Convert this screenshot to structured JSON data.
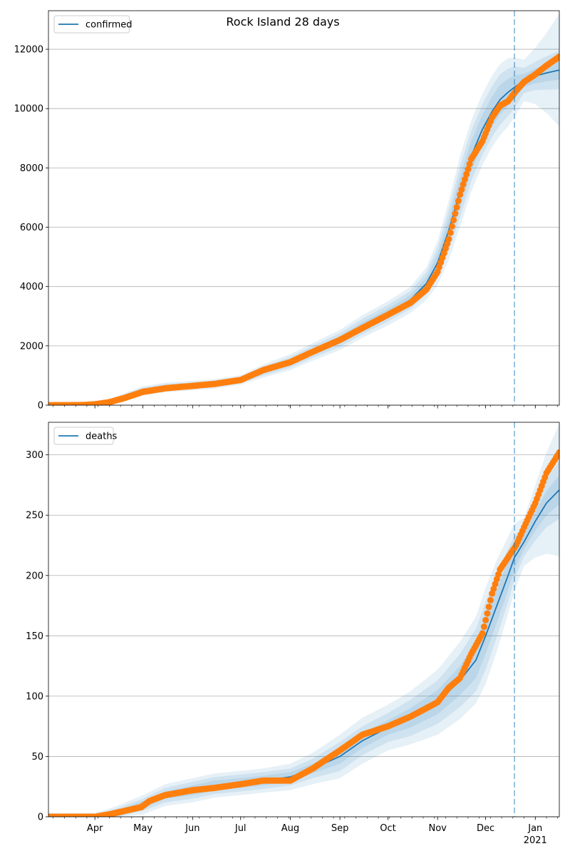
{
  "figure": {
    "title": "Rock Island 28 days",
    "forecast_start_date": "2020-12-19"
  },
  "colors": {
    "model": "#1f77b4",
    "observed": "#ff7f0e",
    "band": "#1f77b4",
    "grid": "#b0b0b0"
  },
  "chart_data": [
    {
      "type": "line",
      "legend": "confirmed",
      "legend_position": "top-left",
      "grid": "horizontal",
      "xlim": [
        "2020-03-03",
        "2021-01-16"
      ],
      "ylim": [
        0,
        13300
      ],
      "yticks": [
        0,
        2000,
        4000,
        6000,
        8000,
        10000,
        12000
      ],
      "xtick_labels": [
        {
          "date": "2020-04-01",
          "label": "Apr"
        },
        {
          "date": "2020-05-01",
          "label": "May"
        },
        {
          "date": "2020-06-01",
          "label": "Jun"
        },
        {
          "date": "2020-07-01",
          "label": "Jul"
        },
        {
          "date": "2020-08-01",
          "label": "Aug"
        },
        {
          "date": "2020-09-01",
          "label": "Sep"
        },
        {
          "date": "2020-10-01",
          "label": "Oct"
        },
        {
          "date": "2020-11-01",
          "label": "Nov"
        },
        {
          "date": "2020-12-01",
          "label": "Dec"
        },
        {
          "date": "2021-01-01",
          "label": "Jan\n2021"
        }
      ],
      "model": {
        "x": [
          "2020-03-03",
          "2020-03-25",
          "2020-04-01",
          "2020-04-15",
          "2020-05-01",
          "2020-05-15",
          "2020-06-01",
          "2020-06-15",
          "2020-07-01",
          "2020-07-15",
          "2020-08-01",
          "2020-08-15",
          "2020-09-01",
          "2020-09-15",
          "2020-10-01",
          "2020-10-15",
          "2020-10-25",
          "2020-11-01",
          "2020-11-08",
          "2020-11-15",
          "2020-11-22",
          "2020-11-29",
          "2020-12-05",
          "2020-12-10",
          "2020-12-15",
          "2020-12-19",
          "2020-12-25",
          "2021-01-01",
          "2021-01-08",
          "2021-01-16"
        ],
        "y": [
          5,
          20,
          30,
          220,
          480,
          600,
          660,
          720,
          850,
          1150,
          1450,
          1800,
          2200,
          2650,
          3100,
          3550,
          4100,
          4800,
          5900,
          7200,
          8400,
          9300,
          9900,
          10300,
          10550,
          10720,
          10950,
          11100,
          11200,
          11300
        ]
      },
      "band_half_widths": [
        [
          0,
          3,
          5,
          30,
          60,
          60,
          60,
          60,
          60,
          80,
          100,
          110,
          120,
          140,
          150,
          160,
          200,
          280,
          400,
          500,
          500,
          500,
          500,
          500,
          450,
          400,
          220,
          250,
          280,
          320
        ],
        [
          0,
          6,
          10,
          60,
          110,
          110,
          110,
          110,
          110,
          150,
          180,
          200,
          230,
          260,
          280,
          300,
          380,
          520,
          700,
          850,
          850,
          850,
          850,
          850,
          800,
          700,
          420,
          480,
          560,
          650
        ],
        [
          0,
          10,
          15,
          90,
          160,
          160,
          160,
          160,
          160,
          220,
          270,
          300,
          340,
          380,
          410,
          440,
          550,
          750,
          1000,
          1200,
          1200,
          1200,
          1200,
          1200,
          1150,
          1000,
          700,
          950,
          1350,
          1900
        ]
      ],
      "observed": {
        "x": [
          "2020-03-03",
          "2020-03-15",
          "2020-03-25",
          "2020-04-01",
          "2020-04-10",
          "2020-04-20",
          "2020-05-01",
          "2020-05-15",
          "2020-06-01",
          "2020-06-15",
          "2020-07-01",
          "2020-07-15",
          "2020-08-01",
          "2020-08-15",
          "2020-09-01",
          "2020-09-15",
          "2020-10-01",
          "2020-10-15",
          "2020-10-25",
          "2020-11-01",
          "2020-11-08",
          "2020-11-15",
          "2020-11-22",
          "2020-11-29",
          "2020-12-05",
          "2020-12-10",
          "2020-12-15",
          "2020-12-20",
          "2020-12-25",
          "2021-01-01",
          "2021-01-08",
          "2021-01-16"
        ],
        "y": [
          0,
          0,
          5,
          30,
          100,
          250,
          450,
          570,
          650,
          720,
          850,
          1180,
          1450,
          1800,
          2200,
          2600,
          3050,
          3450,
          3900,
          4500,
          5600,
          7100,
          8300,
          8900,
          9700,
          10100,
          10250,
          10600,
          10900,
          11150,
          11450,
          11750
        ]
      }
    },
    {
      "type": "line",
      "legend": "deaths",
      "legend_position": "top-left",
      "grid": "horizontal",
      "xlim": [
        "2020-03-03",
        "2021-01-16"
      ],
      "ylim": [
        0,
        327
      ],
      "yticks": [
        0,
        50,
        100,
        150,
        200,
        250,
        300
      ],
      "xtick_labels": [
        {
          "date": "2020-04-01",
          "label": "Apr"
        },
        {
          "date": "2020-05-01",
          "label": "May"
        },
        {
          "date": "2020-06-01",
          "label": "Jun"
        },
        {
          "date": "2020-07-01",
          "label": "Jul"
        },
        {
          "date": "2020-08-01",
          "label": "Aug"
        },
        {
          "date": "2020-09-01",
          "label": "Sep"
        },
        {
          "date": "2020-10-01",
          "label": "Oct"
        },
        {
          "date": "2020-11-01",
          "label": "Nov"
        },
        {
          "date": "2020-12-01",
          "label": "Dec"
        },
        {
          "date": "2021-01-01",
          "label": "Jan\n2021"
        }
      ],
      "model": {
        "x": [
          "2020-03-03",
          "2020-04-01",
          "2020-04-15",
          "2020-05-01",
          "2020-05-15",
          "2020-06-01",
          "2020-06-15",
          "2020-07-01",
          "2020-07-15",
          "2020-08-01",
          "2020-08-15",
          "2020-09-01",
          "2020-09-15",
          "2020-10-01",
          "2020-10-15",
          "2020-11-01",
          "2020-11-15",
          "2020-11-25",
          "2020-12-01",
          "2020-12-08",
          "2020-12-15",
          "2020-12-19",
          "2020-12-25",
          "2021-01-01",
          "2021-01-08",
          "2021-01-16"
        ],
        "y": [
          0,
          0,
          3,
          10,
          18,
          22,
          26,
          28,
          30,
          33,
          40,
          50,
          63,
          74,
          82,
          95,
          113,
          130,
          150,
          175,
          200,
          215,
          228,
          245,
          260,
          271
        ]
      },
      "band_half_widths": [
        [
          1,
          1,
          2,
          3,
          3,
          4,
          4,
          4,
          4,
          4,
          4,
          6,
          6,
          6,
          8,
          10,
          12,
          15,
          15,
          14,
          12,
          10,
          6,
          8,
          10,
          12
        ],
        [
          2,
          2,
          4,
          5,
          6,
          7,
          7,
          7,
          7,
          7,
          8,
          12,
          12,
          12,
          15,
          18,
          22,
          26,
          28,
          26,
          22,
          18,
          12,
          16,
          20,
          24
        ],
        [
          3,
          3,
          6,
          8,
          9,
          10,
          10,
          10,
          10,
          11,
          13,
          18,
          19,
          19,
          22,
          27,
          32,
          36,
          40,
          38,
          32,
          28,
          20,
          30,
          42,
          55
        ]
      ],
      "observed": {
        "x": [
          "2020-03-03",
          "2020-03-25",
          "2020-04-01",
          "2020-04-10",
          "2020-04-20",
          "2020-04-30",
          "2020-05-05",
          "2020-05-15",
          "2020-06-01",
          "2020-06-15",
          "2020-07-01",
          "2020-07-15",
          "2020-08-01",
          "2020-08-15",
          "2020-09-01",
          "2020-09-15",
          "2020-10-01",
          "2020-10-15",
          "2020-10-25",
          "2020-11-01",
          "2020-11-08",
          "2020-11-15",
          "2020-11-22",
          "2020-11-29",
          "2020-12-05",
          "2020-12-10",
          "2020-12-15",
          "2020-12-20",
          "2020-12-25",
          "2021-01-01",
          "2021-01-08",
          "2021-01-16"
        ],
        "y": [
          0,
          0,
          0,
          2,
          5,
          8,
          13,
          18,
          22,
          24,
          27,
          30,
          30,
          40,
          55,
          68,
          75,
          83,
          90,
          95,
          107,
          115,
          135,
          152,
          185,
          205,
          215,
          225,
          240,
          260,
          285,
          302
        ]
      }
    }
  ]
}
